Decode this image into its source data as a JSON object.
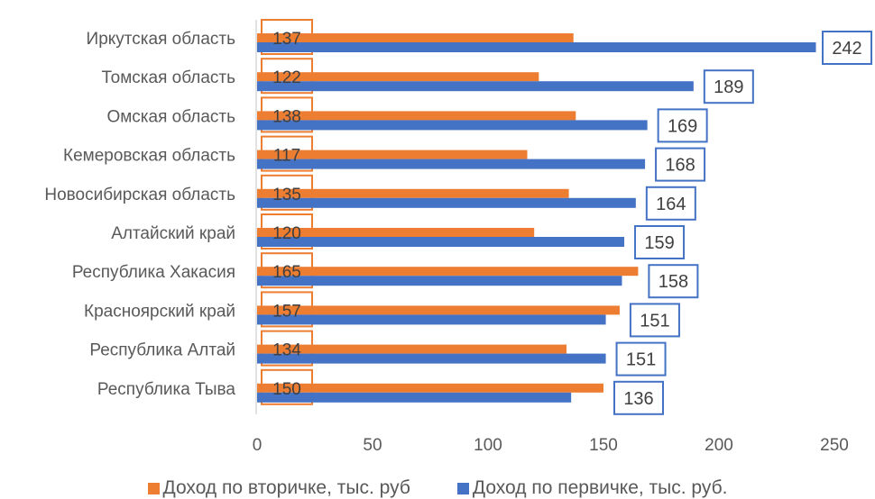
{
  "chart_data": {
    "type": "bar",
    "orientation": "horizontal",
    "categories": [
      "Иркутская область",
      "Томская область",
      "Омская область",
      "Кемеровская область",
      "Новосибирская область",
      "Алтайский край",
      "Республика Хакасия",
      "Красноярский край",
      "Республика Алтай",
      "Республика Тыва"
    ],
    "series": [
      {
        "name": "Доход по вторичке, тыс. руб",
        "color": "#ED7D31",
        "values": [
          137,
          122,
          138,
          117,
          135,
          120,
          165,
          157,
          134,
          150
        ]
      },
      {
        "name": "Доход по первичке, тыс. руб.",
        "color": "#4472C4",
        "values": [
          242,
          189,
          169,
          168,
          164,
          159,
          158,
          151,
          151,
          136
        ]
      }
    ],
    "xlim": [
      0,
      250
    ],
    "xticks": [
      "0",
      "50",
      "100",
      "150",
      "200",
      "250"
    ],
    "grid": false,
    "legend": "bottom",
    "data_labels": true
  }
}
